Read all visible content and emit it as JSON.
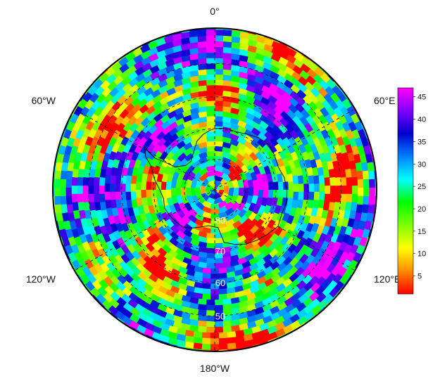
{
  "map": {
    "projection": "south-polar-stereographic",
    "longitude_labels": [
      {
        "text": "0°",
        "lon": 0
      },
      {
        "text": "60°E",
        "lon": 60
      },
      {
        "text": "120°E",
        "lon": 120
      },
      {
        "text": "180°W",
        "lon": 180
      },
      {
        "text": "120°W",
        "lon": -120
      },
      {
        "text": "60°W",
        "lon": -60
      }
    ],
    "latitude_labels": [
      {
        "text": "80",
        "lat": -80
      },
      {
        "text": "70",
        "lat": -70
      },
      {
        "text": "60",
        "lat": -60
      },
      {
        "text": "50",
        "lat": -50
      }
    ],
    "boundary_lat": -40,
    "grid_lats": [
      -50,
      -60,
      -70,
      -80
    ],
    "grid_lons": [
      0,
      60,
      120,
      180,
      -120,
      -60
    ],
    "grid_color": "#000000",
    "coast_color": "#000000"
  },
  "colorbar": {
    "min": 1,
    "max": 47,
    "ticks": [
      "5",
      "10",
      "15",
      "20",
      "25",
      "30",
      "35",
      "40",
      "45"
    ],
    "colormap": [
      "#ff0000",
      "#ff8c00",
      "#ffff00",
      "#7fff00",
      "#00ff00",
      "#00ffff",
      "#0080ff",
      "#0000cc",
      "#8000ff",
      "#ff00ff"
    ]
  }
}
